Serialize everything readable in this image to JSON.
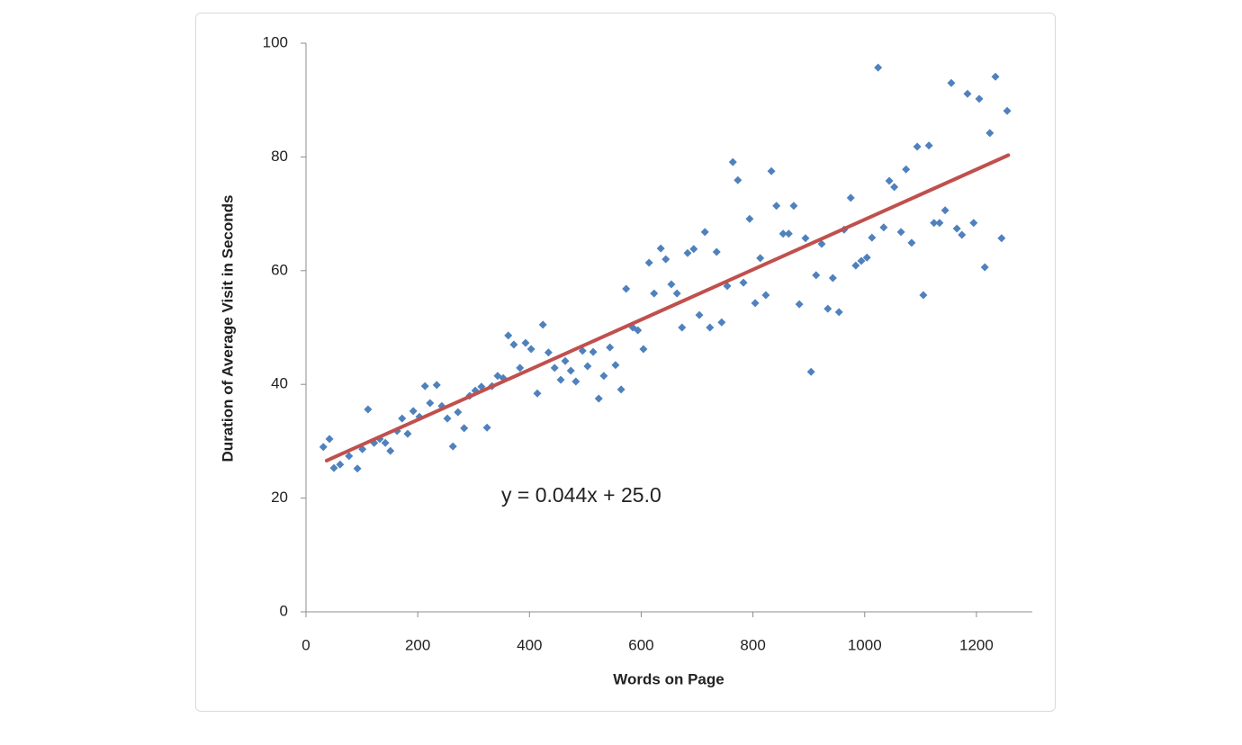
{
  "chart_data": {
    "type": "scatter",
    "x_label": "Words on Page",
    "y_label": "Duration of Average Visit in Seconds",
    "annotation": "y = 0.044x + 25.0",
    "xlim": [
      0,
      1300
    ],
    "xticks": [
      0,
      200,
      400,
      600,
      800,
      1000,
      1200
    ],
    "ylim": [
      0,
      100
    ],
    "yticks": [
      0,
      20,
      40,
      60,
      80,
      100
    ],
    "grid": false,
    "series": [
      {
        "color": "#4f81bd",
        "x": [
          31,
          42,
          50,
          61,
          77,
          92,
          101,
          111,
          122,
          132,
          142,
          151,
          163,
          172,
          182,
          192,
          203,
          213,
          222,
          234,
          243,
          253,
          263,
          272,
          283,
          293,
          303,
          314,
          324,
          333,
          343,
          353,
          362,
          372,
          383,
          393,
          403,
          414,
          424,
          434,
          445,
          456,
          464,
          474,
          483,
          495,
          504,
          514,
          524,
          533,
          544,
          554,
          564,
          573,
          585,
          594,
          604,
          614,
          623,
          635,
          644,
          654,
          664,
          673,
          683,
          694,
          704,
          714,
          723,
          735,
          744,
          754,
          764,
          773,
          783,
          794,
          804,
          813,
          823,
          833,
          842,
          854,
          864,
          873,
          883,
          894,
          904,
          913,
          923,
          934,
          943,
          954,
          963,
          975,
          984,
          994,
          1004,
          1013,
          1024,
          1034,
          1044,
          1053,
          1065,
          1074,
          1084,
          1094,
          1105,
          1115,
          1124,
          1134,
          1144,
          1155,
          1165,
          1174,
          1184,
          1195,
          1205,
          1215,
          1224,
          1234,
          1245,
          1255
        ],
        "values": [
          29.0,
          30.4,
          25.3,
          25.9,
          27.4,
          25.2,
          28.6,
          35.6,
          29.7,
          30.4,
          29.7,
          28.3,
          31.8,
          34.0,
          31.3,
          35.3,
          34.3,
          39.7,
          36.7,
          39.9,
          36.2,
          34.0,
          29.1,
          35.1,
          32.3,
          38.0,
          38.9,
          39.6,
          32.4,
          39.7,
          41.5,
          41.1,
          48.6,
          47.0,
          42.9,
          47.3,
          46.2,
          38.4,
          50.5,
          45.6,
          42.9,
          40.8,
          44.1,
          42.4,
          40.5,
          45.9,
          43.2,
          45.7,
          37.5,
          41.5,
          46.5,
          43.4,
          39.1,
          56.8,
          50.0,
          49.5,
          46.2,
          61.4,
          56.0,
          63.9,
          62.0,
          57.6,
          56.0,
          50.0,
          63.1,
          63.8,
          52.2,
          66.8,
          50.0,
          63.3,
          50.9,
          57.3,
          79.1,
          75.9,
          57.9,
          69.1,
          54.3,
          62.2,
          55.7,
          77.5,
          71.4,
          66.5,
          66.5,
          71.4,
          54.1,
          65.7,
          42.2,
          59.2,
          64.7,
          53.3,
          58.7,
          52.7,
          67.2,
          72.8,
          60.9,
          61.7,
          62.3,
          65.8,
          95.7,
          67.6,
          75.8,
          74.7,
          66.8,
          77.8,
          64.9,
          81.8,
          55.7,
          82.0,
          68.4,
          68.4,
          70.6,
          93.0,
          67.4,
          66.3,
          91.1,
          68.4,
          90.2,
          60.6,
          84.2,
          94.1,
          65.7,
          88.1
        ]
      }
    ],
    "trendline": {
      "color": "#c0504d",
      "x": [
        37,
        1257
      ],
      "values": [
        26.6,
        80.3
      ]
    }
  }
}
